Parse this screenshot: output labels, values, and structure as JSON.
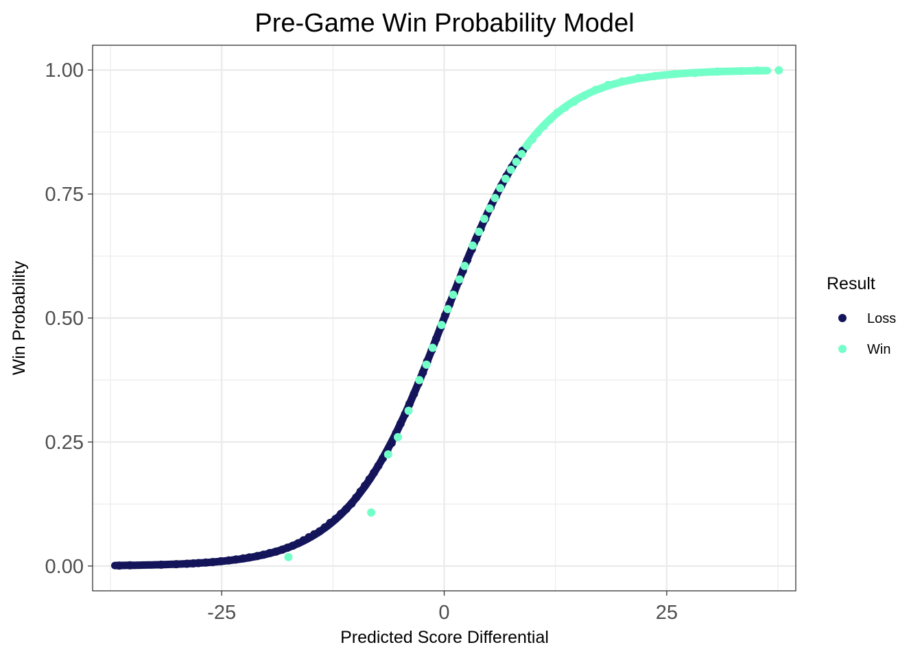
{
  "chart_data": {
    "type": "scatter",
    "title": "Pre-Game Win Probability Model",
    "xlabel": "Predicted Score Differential",
    "ylabel": "Win Probability",
    "xlim": [
      -39.5,
      39.5
    ],
    "ylim": [
      -0.05,
      1.05
    ],
    "x_ticks": [
      -25,
      0,
      25
    ],
    "x_tick_labels": [
      "-25",
      "0",
      "25"
    ],
    "y_ticks": [
      0,
      0.25,
      0.5,
      0.75,
      1
    ],
    "y_tick_labels": [
      "0.00",
      "0.25",
      "0.50",
      "0.75",
      "1.00"
    ],
    "grid": true,
    "legend": {
      "title": "Result",
      "position": "right",
      "entries": [
        {
          "label": "Loss",
          "color": "#14145a"
        },
        {
          "label": "Win",
          "color": "#73ffc8"
        }
      ]
    },
    "curve": "logistic, win probability = 1 / (1 + exp(-0.1855 * predicted score differential))",
    "series": [
      {
        "name": "Loss",
        "color": "#14145a",
        "x": [
          -36.5,
          -35.3,
          -31.8,
          -30.1,
          -28.9,
          -28.2,
          -27.6,
          -26.8,
          -26.0,
          -25.1,
          -24.2,
          -23.4,
          -22.6,
          -21.9,
          -21.0,
          -20.3,
          -19.6,
          -18.9,
          -18.2,
          -17.6,
          -17.0,
          -16.4,
          -15.8,
          -15.2,
          -14.6,
          -14.0,
          -13.4,
          -12.8,
          -12.2,
          -11.6,
          -11.0,
          -10.4,
          -9.9,
          -9.4,
          -8.9,
          -8.4,
          -7.9,
          -7.4,
          -6.9,
          -6.4,
          -5.9,
          -5.4,
          -4.9,
          -4.4,
          -3.9,
          -3.4,
          -2.9,
          -2.4,
          -1.9,
          -1.4,
          -0.9,
          -0.4,
          0.1,
          0.6,
          1.1,
          1.6,
          2.1,
          2.6,
          3.1,
          3.6,
          4.1,
          4.6,
          5.2,
          5.8,
          6.4,
          7.0,
          7.6,
          8.2,
          8.8
        ],
        "y": [
          0.001,
          0.0015,
          0.0027,
          0.0037,
          0.0046,
          0.0053,
          0.0059,
          0.0069,
          0.008,
          0.0095,
          0.0113,
          0.0131,
          0.0153,
          0.0175,
          0.0202,
          0.023,
          0.0261,
          0.0292,
          0.033,
          0.037,
          0.041,
          0.046,
          0.052,
          0.058,
          0.064,
          0.07,
          0.078,
          0.087,
          0.095,
          0.105,
          0.115,
          0.126,
          0.138,
          0.15,
          0.162,
          0.175,
          0.188,
          0.202,
          0.217,
          0.232,
          0.248,
          0.268,
          0.287,
          0.306,
          0.327,
          0.347,
          0.368,
          0.39,
          0.413,
          0.435,
          0.458,
          0.481,
          0.505,
          0.528,
          0.551,
          0.573,
          0.595,
          0.617,
          0.638,
          0.66,
          0.68,
          0.7,
          0.723,
          0.745,
          0.766,
          0.786,
          0.804,
          0.821,
          0.837
        ]
      },
      {
        "name": "Win",
        "color": "#73ffc8",
        "x": [
          -17.5,
          -8.2,
          -6.3,
          -5.2,
          -4.0,
          -2.8,
          -2.0,
          -1.3,
          -0.3,
          0.4,
          1.0,
          1.7,
          2.3,
          3.2,
          3.9,
          4.5,
          5.1,
          5.7,
          6.3,
          6.9,
          7.5,
          8.1,
          8.7,
          9.3,
          9.9,
          10.5,
          11.2,
          11.9,
          12.7,
          13.6,
          14.6,
          15.7,
          17.0,
          18.4,
          20.0,
          21.8,
          23.7,
          25.9,
          28.2,
          30.7,
          33.4,
          35.2,
          37.6
        ],
        "y": [
          0.018,
          0.108,
          0.225,
          0.26,
          0.313,
          0.375,
          0.406,
          0.44,
          0.486,
          0.518,
          0.547,
          0.578,
          0.605,
          0.646,
          0.674,
          0.7,
          0.721,
          0.742,
          0.762,
          0.781,
          0.799,
          0.815,
          0.831,
          0.847,
          0.86,
          0.874,
          0.887,
          0.9,
          0.914,
          0.925,
          0.936,
          0.948,
          0.96,
          0.97,
          0.977,
          0.984,
          0.988,
          0.992,
          0.994,
          0.997,
          0.998,
          0.999,
          0.9995
        ]
      }
    ]
  }
}
